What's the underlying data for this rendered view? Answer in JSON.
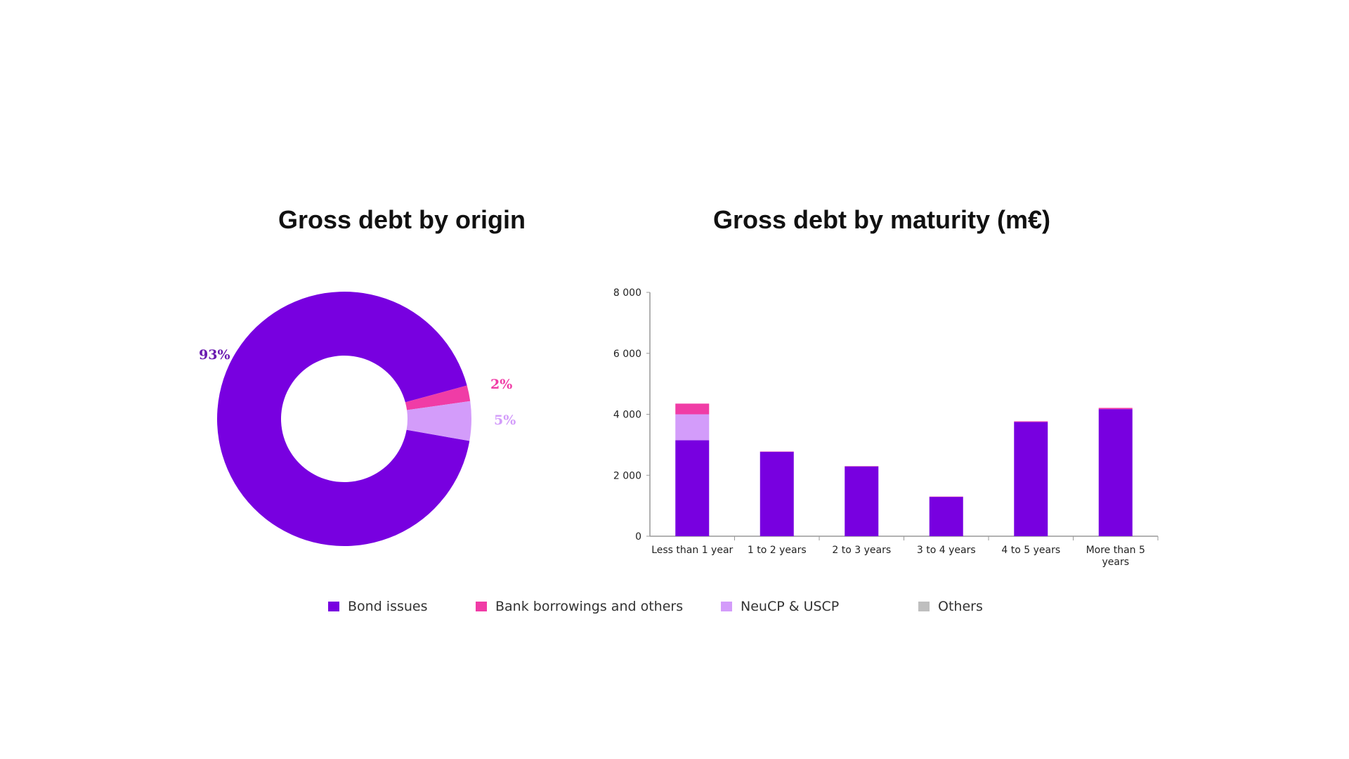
{
  "colors": {
    "bond": "#7800e0",
    "bank": "#f03ca6",
    "neucp": "#d39cfa",
    "others": "#bfbfbf"
  },
  "chart_data": [
    {
      "type": "pie",
      "title": "Gross debt by origin",
      "donut": true,
      "slices": [
        {
          "name": "Bond issues",
          "value": 93,
          "label": "93%"
        },
        {
          "name": "Bank borrowings and others",
          "value": 2,
          "label": "2%"
        },
        {
          "name": "NeuCP & USCP",
          "value": 5,
          "label": "5%"
        }
      ]
    },
    {
      "type": "bar",
      "stacked": true,
      "title": "Gross debt by maturity (m€)",
      "categories": [
        "Less than 1 year",
        "1 to 2 years",
        "2 to 3 years",
        "3 to 4 years",
        "4 to 5 years",
        "More than 5 years"
      ],
      "series": [
        {
          "name": "Bond issues",
          "values": [
            3150,
            2770,
            2290,
            1290,
            3750,
            4170
          ]
        },
        {
          "name": "NeuCP & USCP",
          "values": [
            850,
            0,
            0,
            0,
            0,
            0
          ]
        },
        {
          "name": "Bank borrowings and others",
          "values": [
            350,
            10,
            10,
            10,
            20,
            40
          ]
        },
        {
          "name": "Others",
          "values": [
            0,
            0,
            0,
            0,
            0,
            0
          ]
        }
      ],
      "ylim": [
        0,
        8000
      ],
      "yticks": [
        0,
        2000,
        4000,
        6000,
        8000
      ],
      "ytick_labels": [
        "0",
        "2 000",
        "4 000",
        "6 000",
        "8 000"
      ],
      "grid": false
    }
  ],
  "legend": [
    {
      "label": "Bond issues",
      "color": "#7800e0"
    },
    {
      "label": "Bank borrowings and others",
      "color": "#f03ca6"
    },
    {
      "label": "NeuCP & USCP",
      "color": "#d39cfa"
    },
    {
      "label": "Others",
      "color": "#bfbfbf"
    }
  ]
}
